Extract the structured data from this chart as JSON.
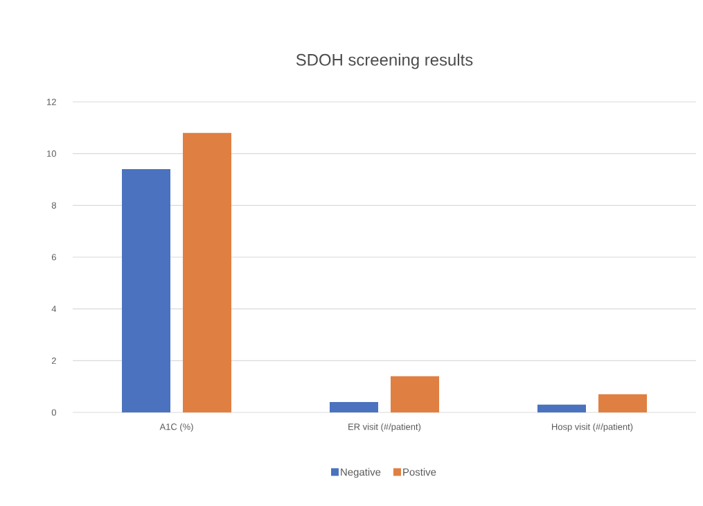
{
  "chart_data": {
    "type": "bar",
    "title": "SDOH screening results",
    "categories": [
      "A1C (%)",
      "ER visit (#/patient)",
      "Hosp visit (#/patient)"
    ],
    "series": [
      {
        "name": "Negative",
        "color": "#4a72be",
        "values": [
          9.4,
          0.4,
          0.3
        ]
      },
      {
        "name": "Postive",
        "color": "#e07f42",
        "values": [
          10.8,
          1.4,
          0.7
        ]
      }
    ],
    "ylim": [
      0,
      12
    ],
    "yticks": [
      0,
      2,
      4,
      6,
      8,
      10,
      12
    ],
    "grid": "y",
    "legend": "bottom"
  }
}
